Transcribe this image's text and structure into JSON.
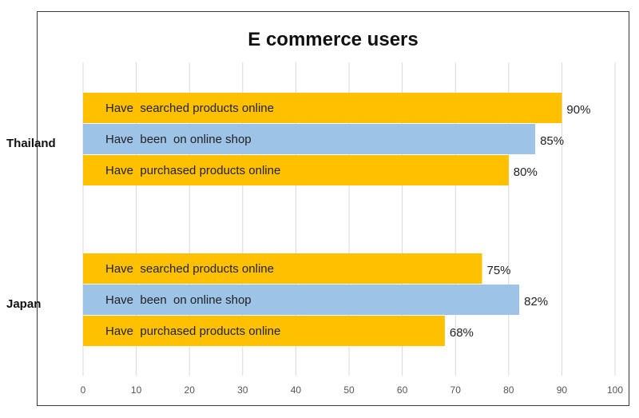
{
  "chart_data": {
    "type": "bar",
    "orientation": "horizontal",
    "title": "E commerce users",
    "xlabel": "",
    "ylabel": "",
    "xlim": [
      0,
      100
    ],
    "xticks": [
      0,
      10,
      20,
      30,
      40,
      50,
      60,
      70,
      80,
      90,
      100
    ],
    "grid": true,
    "groups": [
      {
        "name": "Thailand",
        "bars": [
          {
            "label": "Have  searched products online",
            "value": 90,
            "value_label": "90%",
            "color": "#ffc000"
          },
          {
            "label": "Have  been  on online shop",
            "value": 85,
            "value_label": "85%",
            "color": "#9dc3e6"
          },
          {
            "label": "Have  purchased products online",
            "value": 80,
            "value_label": "80%",
            "color": "#ffc000"
          }
        ]
      },
      {
        "name": "Japan",
        "bars": [
          {
            "label": "Have  searched products online",
            "value": 75,
            "value_label": "75%",
            "color": "#ffc000"
          },
          {
            "label": "Have  been  on online shop",
            "value": 82,
            "value_label": "82%",
            "color": "#9dc3e6"
          },
          {
            "label": "Have  purchased products online",
            "value": 68,
            "value_label": "68%",
            "color": "#ffc000"
          }
        ]
      }
    ]
  }
}
